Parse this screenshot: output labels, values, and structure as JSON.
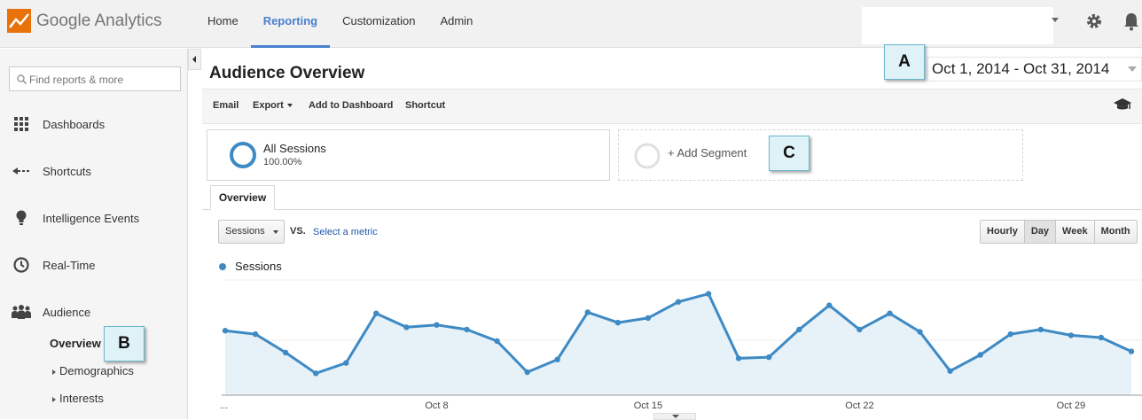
{
  "app": {
    "brand": "Google Analytics"
  },
  "topnav": {
    "items": [
      {
        "label": "Home",
        "active": false
      },
      {
        "label": "Reporting",
        "active": true
      },
      {
        "label": "Customization",
        "active": false
      },
      {
        "label": "Admin",
        "active": false
      }
    ]
  },
  "header_icons": [
    "gear-icon",
    "bell-icon"
  ],
  "sidebar": {
    "search_placeholder": "Find reports & more",
    "items": [
      {
        "label": "Dashboards",
        "icon": "grid-icon"
      },
      {
        "label": "Shortcuts",
        "icon": "shortcut-arrow-icon"
      },
      {
        "label": "Intelligence Events",
        "icon": "lightbulb-icon"
      },
      {
        "label": "Real-Time",
        "icon": "clock-icon"
      },
      {
        "label": "Audience",
        "icon": "people-icon"
      }
    ],
    "subitems": [
      {
        "label": "Overview",
        "active": true
      },
      {
        "label": "Demographics",
        "active": false
      },
      {
        "label": "Interests",
        "active": false
      }
    ]
  },
  "main": {
    "title": "Audience Overview",
    "date_range": "Oct 1, 2014 - Oct 31, 2014",
    "toolbar": {
      "email": "Email",
      "export": "Export",
      "add_to_dashboard": "Add to Dashboard",
      "shortcut": "Shortcut"
    },
    "segment": {
      "name": "All Sessions",
      "percent": "100.00%"
    },
    "add_segment": "+ Add Segment",
    "tab": "Overview",
    "metric": {
      "selected": "Sessions",
      "vs": "VS.",
      "select_metric": "Select a metric"
    },
    "granularity": [
      {
        "label": "Hourly",
        "active": false
      },
      {
        "label": "Day",
        "active": true
      },
      {
        "label": "Week",
        "active": false
      },
      {
        "label": "Month",
        "active": false
      }
    ],
    "legend": "Sessions"
  },
  "callouts": {
    "a": "A",
    "b": "B",
    "c": "C"
  },
  "colors": {
    "accent": "#4a7fd0",
    "series": "#3e8ac4",
    "area": "#e6f1f8",
    "callout_bg": "#dff2f7"
  },
  "chart_data": {
    "type": "area",
    "x": [
      1,
      2,
      3,
      4,
      5,
      6,
      7,
      8,
      9,
      10,
      11,
      12,
      13,
      14,
      15,
      16,
      17,
      18,
      19,
      20,
      21,
      22,
      23,
      24,
      25,
      26,
      27,
      28,
      29,
      30,
      31
    ],
    "series": [
      {
        "name": "Sessions",
        "values": [
          0.56,
          0.53,
          0.37,
          0.19,
          0.28,
          0.71,
          0.59,
          0.61,
          0.57,
          0.47,
          0.2,
          0.31,
          0.72,
          0.63,
          0.67,
          0.81,
          0.88,
          0.32,
          0.33,
          0.57,
          0.78,
          0.57,
          0.71,
          0.55,
          0.21,
          0.35,
          0.53,
          0.57,
          0.52,
          0.5,
          0.38
        ]
      }
    ],
    "x_tick_labels": [
      {
        "x": 8,
        "label": "Oct 8"
      },
      {
        "x": 15,
        "label": "Oct 15"
      },
      {
        "x": 22,
        "label": "Oct 22"
      },
      {
        "x": 29,
        "label": "Oct 29"
      }
    ],
    "y_tick_label_left": "...",
    "ylim": [
      0,
      1
    ],
    "grid": true,
    "legend_position": "top-left"
  }
}
